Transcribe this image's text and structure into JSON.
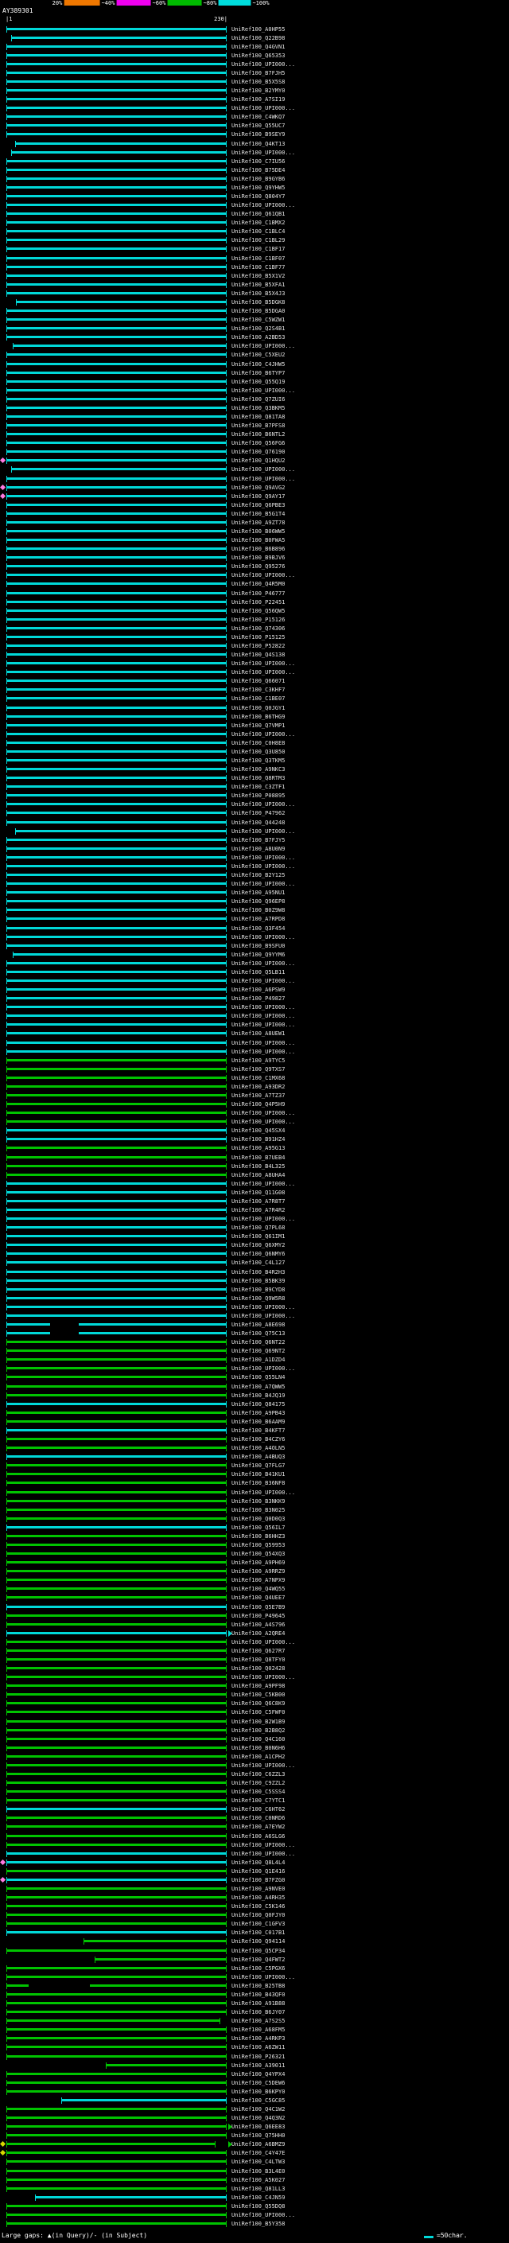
{
  "header": {
    "accession": "AY389301",
    "ruler_start": "|1",
    "ruler_end": "230|"
  },
  "scale": {
    "labels": [
      "20%",
      "~40%",
      "~60%",
      "~80%",
      "~100%"
    ],
    "segments": [
      "#000000",
      "#ee7700",
      "#ee00ee",
      "#00bb00",
      "#00dddd"
    ]
  },
  "colors": {
    "cyan": "#00d8d8",
    "green": "#00c400",
    "diamond_pink": "#ff7ae0",
    "diamond_yellow": "#d8d800"
  },
  "footer": {
    "gaps_legend": "Large gaps: ▲(in Query)/- (in Subject)",
    "char_scale": "=50char."
  },
  "rows": [
    [
      "UniRef100_A0HP55",
      "c"
    ],
    [
      "UniRef100_Q22B98",
      "c",
      0.02,
      1
    ],
    [
      "UniRef100_Q4GVN1",
      "c"
    ],
    [
      "UniRef100_Q65353",
      "c"
    ],
    [
      "UniRef100_UPI000...",
      "c"
    ],
    [
      "UniRef100_B7FJH5",
      "c"
    ],
    [
      "UniRef100_B5X5S8",
      "c"
    ],
    [
      "UniRef100_B2YMY0",
      "c"
    ],
    [
      "UniRef100_A7SI19",
      "c"
    ],
    [
      "UniRef100_UPI000...",
      "c"
    ],
    [
      "UniRef100_C4WKQ7",
      "c"
    ],
    [
      "UniRef100_Q55UC7",
      "c"
    ],
    [
      "UniRef100_B9SEY9",
      "c"
    ],
    [
      "UniRef100_Q4KT13",
      "c",
      0.04,
      1
    ],
    [
      "UniRef100_UPI000...",
      "c",
      0.02,
      1
    ],
    [
      "UniRef100_C7IU56",
      "c"
    ],
    [
      "UniRef100_B75DE4",
      "c"
    ],
    [
      "UniRef100_B9GYB6",
      "c"
    ],
    [
      "UniRef100_Q9YHW5",
      "c"
    ],
    [
      "UniRef100_Q804Y7",
      "c"
    ],
    [
      "UniRef100_UPI000...",
      "c"
    ],
    [
      "UniRef100_Q61QB1",
      "c"
    ],
    [
      "UniRef100_C1BMX2",
      "c"
    ],
    [
      "UniRef100_C1BLC4",
      "c"
    ],
    [
      "UniRef100_C1BL29",
      "c"
    ],
    [
      "UniRef100_C1BF17",
      "c"
    ],
    [
      "UniRef100_C1BF07",
      "c"
    ],
    [
      "UniRef100_C1BF77",
      "c"
    ],
    [
      "UniRef100_B5X1V2",
      "c"
    ],
    [
      "UniRef100_B5XFA1",
      "c"
    ],
    [
      "UniRef100_B5X4J3",
      "c"
    ],
    [
      "UniRef100_B5DGK8",
      "c",
      0.043,
      1
    ],
    [
      "UniRef100_B5DGA0",
      "c"
    ],
    [
      "UniRef100_C5WZW1",
      "c"
    ],
    [
      "UniRef100_Q2S4B1",
      "c"
    ],
    [
      "UniRef100_A2BD53",
      "c"
    ],
    [
      "UniRef100_UPI000...",
      "c",
      0.03,
      1
    ],
    [
      "UniRef100_C5XEU2",
      "c"
    ],
    [
      "UniRef100_C4JHW5",
      "c"
    ],
    [
      "UniRef100_B6TYP7",
      "c"
    ],
    [
      "UniRef100_Q55Q19",
      "c"
    ],
    [
      "UniRef100_UPI000...",
      "c"
    ],
    [
      "UniRef100_Q7ZUI6",
      "c"
    ],
    [
      "UniRef100_Q3BKM5",
      "c"
    ],
    [
      "UniRef100_Q81TA8",
      "c"
    ],
    [
      "UniRef100_B7PFS8",
      "c"
    ],
    [
      "UniRef100_B6NTL2",
      "c"
    ],
    [
      "UniRef100_Q56FG6",
      "c"
    ],
    [
      "UniRef100_Q76190",
      "c"
    ],
    [
      "UniRef100_Q1HQU2",
      "c",
      0,
      1,
      "d"
    ],
    [
      "UniRef100_UPI000...",
      "c",
      0.02,
      1
    ],
    [
      "UniRef100_UPI000...",
      "c"
    ],
    [
      "UniRef100_Q9AVG2",
      "c",
      0,
      1,
      "d"
    ],
    [
      "UniRef100_Q9AY17",
      "c",
      0,
      1,
      "d"
    ],
    [
      "UniRef100_Q6PBE3",
      "c"
    ],
    [
      "UniRef100_B5G1T4",
      "c"
    ],
    [
      "UniRef100_A9ZT78",
      "c"
    ],
    [
      "UniRef100_B06WW5",
      "c"
    ],
    [
      "UniRef100_B0FWA5",
      "c"
    ],
    [
      "UniRef100_B6B896",
      "c"
    ],
    [
      "UniRef100_B9BJV6",
      "c"
    ],
    [
      "UniRef100_Q95276",
      "c"
    ],
    [
      "UniRef100_UPI000...",
      "c"
    ],
    [
      "UniRef100_Q4R5M0",
      "c"
    ],
    [
      "UniRef100_P46777",
      "c"
    ],
    [
      "UniRef100_P22451",
      "c"
    ],
    [
      "UniRef100_Q56QW5",
      "c"
    ],
    [
      "UniRef100_P15126",
      "c"
    ],
    [
      "UniRef100_Q74306",
      "c"
    ],
    [
      "UniRef100_P15125",
      "c"
    ],
    [
      "UniRef100_P52822",
      "c"
    ],
    [
      "UniRef100_Q4S138",
      "c"
    ],
    [
      "UniRef100_UPI000...",
      "c"
    ],
    [
      "UniRef100_UPI000...",
      "c"
    ],
    [
      "UniRef100_Q66071",
      "c"
    ],
    [
      "UniRef100_C3KHF7",
      "c"
    ],
    [
      "UniRef100_C1BE07",
      "c"
    ],
    [
      "UniRef100_Q0JGY1",
      "c"
    ],
    [
      "UniRef100_B6THG9",
      "c"
    ],
    [
      "UniRef100_Q7VMP1",
      "c"
    ],
    [
      "UniRef100_UPI000...",
      "c"
    ],
    [
      "UniRef100_C0H8E8",
      "c"
    ],
    [
      "UniRef100_Q3U850",
      "c"
    ],
    [
      "UniRef100_Q3TKM5",
      "c"
    ],
    [
      "UniRef100_A9NKC3",
      "c"
    ],
    [
      "UniRef100_Q8RTM3",
      "c"
    ],
    [
      "UniRef100_C3ZTF1",
      "c"
    ],
    [
      "UniRef100_P08895",
      "c"
    ],
    [
      "UniRef100_UPI000...",
      "c"
    ],
    [
      "UniRef100_P47962",
      "c"
    ],
    [
      "UniRef100_Q44248",
      "c"
    ],
    [
      "UniRef100_UPI000...",
      "c",
      0.04,
      1
    ],
    [
      "UniRef100_B7FJY5",
      "c"
    ],
    [
      "UniRef100_A8U0N9",
      "c"
    ],
    [
      "UniRef100_UPI000...",
      "c"
    ],
    [
      "UniRef100_UPI000...",
      "c"
    ],
    [
      "UniRef100_B2Y125",
      "c"
    ],
    [
      "UniRef100_UPI000...",
      "c"
    ],
    [
      "UniRef100_A95NU1",
      "c"
    ],
    [
      "UniRef100_Q96EP8",
      "c"
    ],
    [
      "UniRef100_B0Z9W8",
      "c"
    ],
    [
      "UniRef100_A7RPD8",
      "c"
    ],
    [
      "UniRef100_Q3F454",
      "c"
    ],
    [
      "UniRef100_UPI000...",
      "c"
    ],
    [
      "UniRef100_B9SFU0",
      "c"
    ],
    [
      "UniRef100_Q9YYM6",
      "c",
      0.03,
      1
    ],
    [
      "UniRef100_UPI000...",
      "c"
    ],
    [
      "UniRef100_Q5LB11",
      "c"
    ],
    [
      "UniRef100_UPI000...",
      "c"
    ],
    [
      "UniRef100_A6PSW9",
      "c"
    ],
    [
      "UniRef100_P49827",
      "c"
    ],
    [
      "UniRef100_UPI000...",
      "c"
    ],
    [
      "UniRef100_UPI000...",
      "c"
    ],
    [
      "UniRef100_UPI000...",
      "c"
    ],
    [
      "UniRef100_A8UEW1",
      "c"
    ],
    [
      "UniRef100_UPI000...",
      "c"
    ],
    [
      "UniRef100_UPI000...",
      "c"
    ],
    [
      "UniRef100_A9TYC5",
      "g"
    ],
    [
      "UniRef100_Q9TXS7",
      "g"
    ],
    [
      "UniRef100_C1MX68",
      "g"
    ],
    [
      "UniRef100_A93DR2",
      "g"
    ],
    [
      "UniRef100_A7TZ37",
      "g"
    ],
    [
      "UniRef100_Q4P5H9",
      "g"
    ],
    [
      "UniRef100_UPI000...",
      "g"
    ],
    [
      "UniRef100_UPI000...",
      "g"
    ],
    [
      "UniRef100_Q45SX4",
      "c"
    ],
    [
      "UniRef100_B91HZ4",
      "c"
    ],
    [
      "UniRef100_A95G13",
      "g"
    ],
    [
      "UniRef100_B7UEB4",
      "g"
    ],
    [
      "UniRef100_B4L325",
      "g"
    ],
    [
      "UniRef100_A8UHA4",
      "g"
    ],
    [
      "UniRef100_UPI000...",
      "c"
    ],
    [
      "UniRef100_Q11G08",
      "c"
    ],
    [
      "UniRef100_A7R8T7",
      "c"
    ],
    [
      "UniRef100_A7R4R2",
      "c"
    ],
    [
      "UniRef100_UPI000...",
      "c"
    ],
    [
      "UniRef100_Q7PL68",
      "c"
    ],
    [
      "UniRef100_Q61IM1",
      "c"
    ],
    [
      "UniRef100_Q6XMY2",
      "c"
    ],
    [
      "UniRef100_Q6NMY6",
      "c"
    ],
    [
      "UniRef100_C4L127",
      "c"
    ],
    [
      "UniRef100_B4R2H3",
      "c"
    ],
    [
      "UniRef100_B5BK39",
      "c"
    ],
    [
      "UniRef100_B9CYD8",
      "c"
    ],
    [
      "UniRef100_Q9W5R8",
      "c"
    ],
    [
      "UniRef100_UPI000...",
      "c"
    ],
    [
      "UniRef100_UPI000...",
      "c"
    ],
    [
      "UniRef100_A8E698",
      "c",
      0,
      1,
      "",
      [
        0.2,
        0.33
      ]
    ],
    [
      "UniRef100_Q75C13",
      "c",
      0,
      1,
      "",
      [
        0.2,
        0.33
      ]
    ],
    [
      "UniRef100_Q6NT22",
      "g"
    ],
    [
      "UniRef100_Q69NT2",
      "g"
    ],
    [
      "UniRef100_A1DZD4",
      "g"
    ],
    [
      "UniRef100_UPI000...",
      "g"
    ],
    [
      "UniRef100_Q55LN4",
      "g"
    ],
    [
      "UniRef100_A7QWW5",
      "g"
    ],
    [
      "UniRef100_B4JQ19",
      "g"
    ],
    [
      "UniRef100_Q84175",
      "c"
    ],
    [
      "UniRef100_A9PB43",
      "g"
    ],
    [
      "UniRef100_B6AAM9",
      "g"
    ],
    [
      "UniRef100_B4KFT7",
      "c"
    ],
    [
      "UniRef100_B4CZY6",
      "g"
    ],
    [
      "UniRef100_A4OLN5",
      "g"
    ],
    [
      "UniRef100_A4BUQ3",
      "c"
    ],
    [
      "UniRef100_Q7FLG7",
      "g"
    ],
    [
      "UniRef100_B41KU1",
      "g"
    ],
    [
      "UniRef100_B36NF8",
      "g"
    ],
    [
      "UniRef100_UPI000...",
      "g"
    ],
    [
      "UniRef100_B3NKK9",
      "g"
    ],
    [
      "UniRef100_B3N025",
      "g"
    ],
    [
      "UniRef100_Q0D0Q3",
      "g"
    ],
    [
      "UniRef100_Q56IL7",
      "c"
    ],
    [
      "UniRef100_B6HHZ3",
      "g"
    ],
    [
      "UniRef100_Q59953",
      "g"
    ],
    [
      "UniRef100_Q54XQ3",
      "g"
    ],
    [
      "UniRef100_A9PH69",
      "g"
    ],
    [
      "UniRef100_A9RRZ9",
      "g"
    ],
    [
      "UniRef100_A7NPX9",
      "g"
    ],
    [
      "UniRef100_Q4WQ55",
      "g"
    ],
    [
      "UniRef100_Q4UEE7",
      "g"
    ],
    [
      "UniRef100_Q5E7B9",
      "c"
    ],
    [
      "UniRef100_P49645",
      "g"
    ],
    [
      "UniRef100_A4S796",
      "g"
    ],
    [
      "UniRef100_A2QRE4",
      "c",
      0,
      1,
      "a"
    ],
    [
      "UniRef100_UPI000...",
      "g"
    ],
    [
      "UniRef100_Q627R7",
      "g"
    ],
    [
      "UniRef100_Q8TFY0",
      "g"
    ],
    [
      "UniRef100_Q02428",
      "g"
    ],
    [
      "UniRef100_UPI000...",
      "g"
    ],
    [
      "UniRef100_A9PF98",
      "g"
    ],
    [
      "UniRef100_C5KB00",
      "g"
    ],
    [
      "UniRef100_Q6C8K9",
      "g"
    ],
    [
      "UniRef100_C5FWF0",
      "g"
    ],
    [
      "UniRef100_B2W1B9",
      "g"
    ],
    [
      "UniRef100_B2B8Q2",
      "g"
    ],
    [
      "UniRef100_Q4C160",
      "g"
    ],
    [
      "UniRef100_B0N6H6",
      "g"
    ],
    [
      "UniRef100_A1CPH2",
      "g"
    ],
    [
      "UniRef100_UPI000...",
      "g"
    ],
    [
      "UniRef100_C6ZZL3",
      "g"
    ],
    [
      "UniRef100_C9ZZL2",
      "g"
    ],
    [
      "UniRef100_C5SSS4",
      "g"
    ],
    [
      "UniRef100_C7YTC1",
      "g"
    ],
    [
      "UniRef100_C6HT62",
      "c"
    ],
    [
      "UniRef100_C0NRD6",
      "g"
    ],
    [
      "UniRef100_A7EYW2",
      "g"
    ],
    [
      "UniRef100_A6SLG6",
      "g"
    ],
    [
      "UniRef100_UPI000...",
      "g"
    ],
    [
      "UniRef100_UPI000...",
      "c"
    ],
    [
      "UniRef100_Q8L4L4",
      "c",
      0,
      1,
      "d"
    ],
    [
      "UniRef100_Q1E416",
      "g"
    ],
    [
      "UniRef100_B7FZG0",
      "c",
      0,
      1,
      "d"
    ],
    [
      "UniRef100_A9NVE0",
      "g"
    ],
    [
      "UniRef100_A4RH35",
      "g"
    ],
    [
      "UniRef100_C5K146",
      "g"
    ],
    [
      "UniRef100_Q0FJY0",
      "g"
    ],
    [
      "UniRef100_C1GFV3",
      "g"
    ],
    [
      "UniRef100_C017B1",
      "c"
    ],
    [
      "UniRef100_Q94114",
      "g",
      0.35,
      1
    ],
    [
      "UniRef100_Q5CP34",
      "g"
    ],
    [
      "UniRef100_Q4FWT2",
      "g",
      0.4,
      1
    ],
    [
      "UniRef100_C5PGX6",
      "g"
    ],
    [
      "UniRef100_UPI000...",
      "g"
    ],
    [
      "UniRef100_B25TB8",
      "g",
      0,
      1,
      "",
      [
        0.1,
        0.38
      ]
    ],
    [
      "UniRef100_B43QF0",
      "g"
    ],
    [
      "UniRef100_A91B88",
      "g"
    ],
    [
      "UniRef100_B6JY07",
      "g"
    ],
    [
      "UniRef100_A7S2S5",
      "g",
      0,
      0.97
    ],
    [
      "UniRef100_A68FM5",
      "g"
    ],
    [
      "UniRef100_A4RKP3",
      "g"
    ],
    [
      "UniRef100_A6ZW11",
      "g"
    ],
    [
      "UniRef100_P26321",
      "g"
    ],
    [
      "UniRef100_A39011",
      "g",
      0.45,
      1
    ],
    [
      "UniRef100_Q4YPX4",
      "g"
    ],
    [
      "UniRef100_C5DEW6",
      "g"
    ],
    [
      "UniRef100_B6KPY0",
      "g"
    ],
    [
      "UniRef100_C5GC85",
      "c",
      0.25,
      1
    ],
    [
      "UniRef100_Q4C1W2",
      "g"
    ],
    [
      "UniRef100_Q4Q3N2",
      "g"
    ],
    [
      "UniRef100_Q6EE83",
      "g",
      0,
      1,
      "a"
    ],
    [
      "UniRef100_Q75HH0",
      "g"
    ],
    [
      "UniRef100_A6BMZ9",
      "g",
      0,
      0.95,
      "ya"
    ],
    [
      "UniRef100_C4Y47E",
      "g",
      0,
      1,
      "y"
    ],
    [
      "UniRef100_C4LTW3",
      "g"
    ],
    [
      "UniRef100_B3L4E0",
      "g"
    ],
    [
      "UniRef100_A5K027",
      "g"
    ],
    [
      "UniRef100_Q81LL3",
      "g"
    ],
    [
      "UniRef100_C4JN59",
      "c",
      0.13,
      1
    ],
    [
      "UniRef100_Q55DQ8",
      "g"
    ],
    [
      "UniRef100_UPI000...",
      "g"
    ],
    [
      "UniRef100_B5Y358",
      "g"
    ]
  ]
}
